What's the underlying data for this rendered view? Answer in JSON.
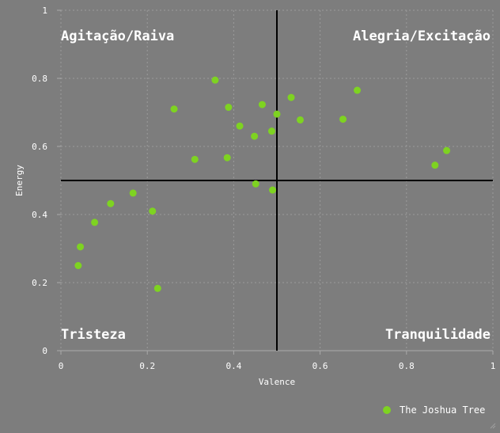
{
  "chart_data": {
    "type": "scatter",
    "xlabel": "Valence",
    "ylabel": "Energy",
    "xlim": [
      0,
      1
    ],
    "ylim": [
      0,
      1
    ],
    "xticks": [
      "0",
      "0.2",
      "0.4",
      "0.6",
      "0.8",
      "1"
    ],
    "yticks": [
      "0",
      "0.2",
      "0.4",
      "0.6",
      "0.8",
      "1"
    ],
    "grid": true,
    "background": "#7d7d7d",
    "point_color": "#7ed321",
    "quadrant_line_color": "#000000",
    "dividers": {
      "x": 0.5,
      "y": 0.5
    },
    "quadrant_labels": {
      "top_left": "Agitação/Raiva",
      "top_right": "Alegria/Excitação",
      "bottom_left": "Tristeza",
      "bottom_right": "Tranquilidade"
    },
    "legend": {
      "position": "bottom-right"
    },
    "series": [
      {
        "name": "The Joshua Tree",
        "points": [
          [
            0.04,
            0.25
          ],
          [
            0.045,
            0.305
          ],
          [
            0.078,
            0.377
          ],
          [
            0.115,
            0.432
          ],
          [
            0.167,
            0.463
          ],
          [
            0.212,
            0.41
          ],
          [
            0.224,
            0.183
          ],
          [
            0.262,
            0.71
          ],
          [
            0.31,
            0.562
          ],
          [
            0.357,
            0.795
          ],
          [
            0.385,
            0.567
          ],
          [
            0.388,
            0.715
          ],
          [
            0.414,
            0.66
          ],
          [
            0.448,
            0.63
          ],
          [
            0.451,
            0.49
          ],
          [
            0.466,
            0.723
          ],
          [
            0.488,
            0.645
          ],
          [
            0.49,
            0.472
          ],
          [
            0.5,
            0.695
          ],
          [
            0.533,
            0.744
          ],
          [
            0.554,
            0.678
          ],
          [
            0.653,
            0.68
          ],
          [
            0.686,
            0.765
          ],
          [
            0.866,
            0.545
          ],
          [
            0.893,
            0.588
          ]
        ]
      }
    ]
  }
}
